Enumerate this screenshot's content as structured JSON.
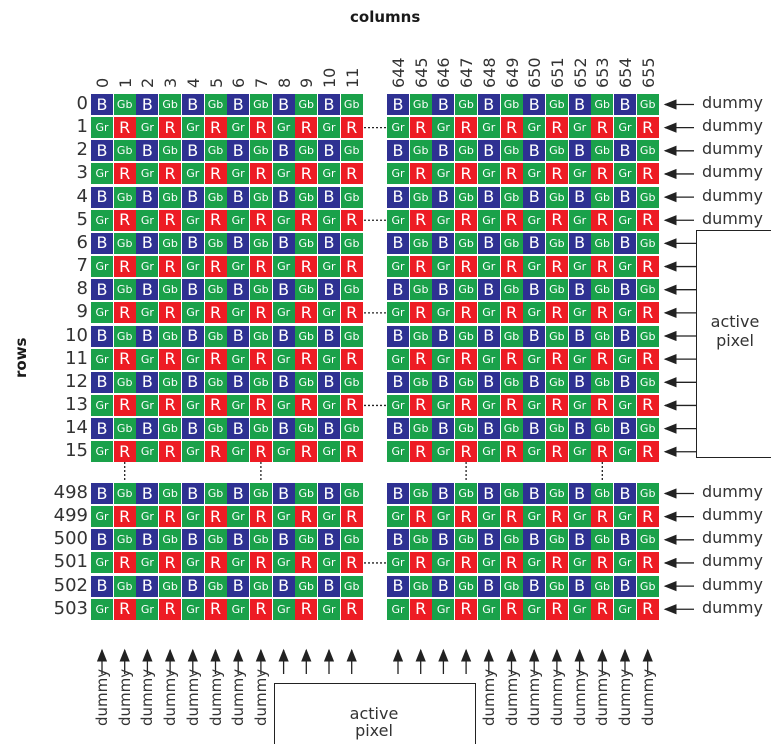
{
  "column_title": "columns",
  "row_title": "rows",
  "column_numbers_left": [
    "0",
    "1",
    "2",
    "3",
    "4",
    "5",
    "6",
    "7",
    "8",
    "9",
    "10",
    "11"
  ],
  "column_numbers_right": [
    "644",
    "645",
    "646",
    "647",
    "648",
    "649",
    "650",
    "651",
    "652",
    "653",
    "654",
    "655"
  ],
  "row_numbers_top": [
    "0",
    "1",
    "2",
    "3",
    "4",
    "5",
    "6",
    "7",
    "8",
    "9",
    "10",
    "11",
    "12",
    "13",
    "14",
    "15"
  ],
  "row_numbers_bottom": [
    "498",
    "499",
    "500",
    "501",
    "502",
    "503"
  ],
  "cell_labels": {
    "blue": "B",
    "green_blue_row": "Gb",
    "green_red_row": "Gr",
    "red": "R"
  },
  "colors": {
    "blue": "#2e3192",
    "green": "#1aa14a",
    "red": "#ed1c24"
  },
  "dummy_label": "dummy",
  "active_pixel_label": "active pixel",
  "right_labels_top": [
    "dummy",
    "dummy",
    "dummy",
    "dummy",
    "dummy",
    "dummy"
  ],
  "right_labels_bottom": [
    "dummy",
    "dummy",
    "dummy",
    "dummy",
    "dummy",
    "dummy"
  ],
  "bottom_labels_left": [
    "dummy",
    "dummy",
    "dummy",
    "dummy",
    "dummy",
    "dummy",
    "dummy",
    "dummy"
  ],
  "bottom_labels_right": [
    "dummy",
    "dummy",
    "dummy",
    "dummy",
    "dummy",
    "dummy",
    "dummy",
    "dummy"
  ]
}
